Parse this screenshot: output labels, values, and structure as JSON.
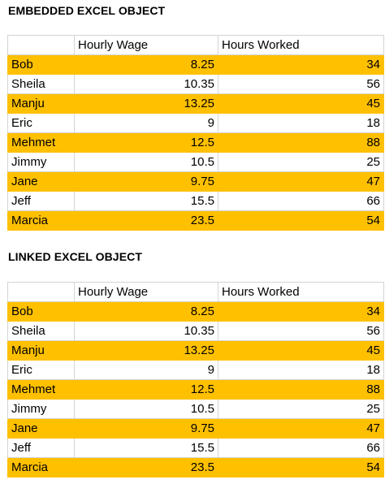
{
  "embedded": {
    "title": "EMBEDDED  EXCEL OBJECT",
    "headers": [
      "",
      "Hourly Wage",
      "Hours Worked"
    ],
    "rows": [
      {
        "name": "Bob",
        "wage": "8.25",
        "hours": "34"
      },
      {
        "name": "Sheila",
        "wage": "10.35",
        "hours": "56"
      },
      {
        "name": "Manju",
        "wage": "13.25",
        "hours": "45"
      },
      {
        "name": "Eric",
        "wage": "9",
        "hours": "18"
      },
      {
        "name": "Mehmet",
        "wage": "12.5",
        "hours": "88"
      },
      {
        "name": "Jimmy",
        "wage": "10.5",
        "hours": "25"
      },
      {
        "name": "Jane",
        "wage": "9.75",
        "hours": "47"
      },
      {
        "name": "Jeff",
        "wage": "15.5",
        "hours": "66"
      },
      {
        "name": "Marcia",
        "wage": "23.5",
        "hours": "54"
      }
    ]
  },
  "linked": {
    "title": "LINKED EXCEL OBJECT",
    "headers": [
      "",
      "Hourly Wage",
      "Hours Worked"
    ],
    "rows": [
      {
        "name": "Bob",
        "wage": "8.25",
        "hours": "34"
      },
      {
        "name": "Sheila",
        "wage": "10.35",
        "hours": "56"
      },
      {
        "name": "Manju",
        "wage": "13.25",
        "hours": "45"
      },
      {
        "name": "Eric",
        "wage": "9",
        "hours": "18"
      },
      {
        "name": "Mehmet",
        "wage": "12.5",
        "hours": "88"
      },
      {
        "name": "Jimmy",
        "wage": "10.5",
        "hours": "25"
      },
      {
        "name": "Jane",
        "wage": "9.75",
        "hours": "47"
      },
      {
        "name": "Jeff",
        "wage": "15.5",
        "hours": "66"
      },
      {
        "name": "Marcia",
        "wage": "23.5",
        "hours": "54"
      }
    ]
  },
  "colors": {
    "band": "#ffc000",
    "gridline": "#d4d4d4"
  }
}
